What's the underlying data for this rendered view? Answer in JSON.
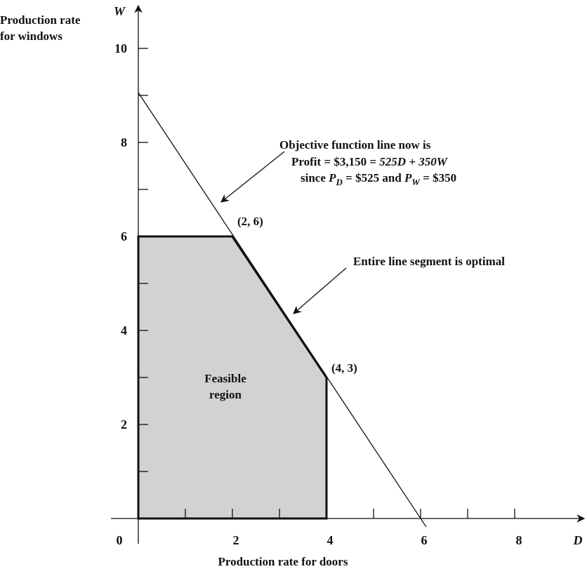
{
  "chart_data": {
    "type": "area",
    "x_axis": {
      "symbol": "D",
      "title": "Production rate for doors",
      "range": [
        0,
        8
      ],
      "tick_labels": [
        "0",
        "2",
        "4",
        "6",
        "8"
      ],
      "minor_step": 1
    },
    "y_axis": {
      "symbol": "W",
      "title_lines": [
        "Production rate",
        "for windows"
      ],
      "range": [
        0,
        10
      ],
      "tick_labels": [
        "2",
        "4",
        "6",
        "8",
        "10"
      ],
      "minor_step": 1
    },
    "feasible_region": {
      "label_lines": [
        "Feasible",
        "region"
      ],
      "vertices": [
        [
          0,
          0
        ],
        [
          0,
          6
        ],
        [
          2,
          6
        ],
        [
          4,
          3
        ],
        [
          4,
          0
        ]
      ],
      "fill": "#d1d2d4"
    },
    "objective_line": {
      "points": [
        [
          0,
          9
        ],
        [
          6,
          0
        ]
      ],
      "annotation": {
        "line1": "Objective function line now is",
        "line2_prefix": "Profit = $3,150 = ",
        "line2_expr": "525D + 350W",
        "line3_prefix": "since ",
        "pd_P": "P",
        "pd_sub": "D",
        "mid": " = $525 and ",
        "pw_P": "P",
        "pw_sub": "W",
        "line3_suffix": " = $350"
      }
    },
    "optimal_segment": {
      "points": [
        [
          2,
          6
        ],
        [
          4,
          3
        ]
      ],
      "annotation": "Entire line segment is optimal"
    },
    "point_labels": [
      {
        "text": "(2, 6)",
        "x": 2,
        "y": 6
      },
      {
        "text": "(4, 3)",
        "x": 4,
        "y": 3
      }
    ]
  }
}
